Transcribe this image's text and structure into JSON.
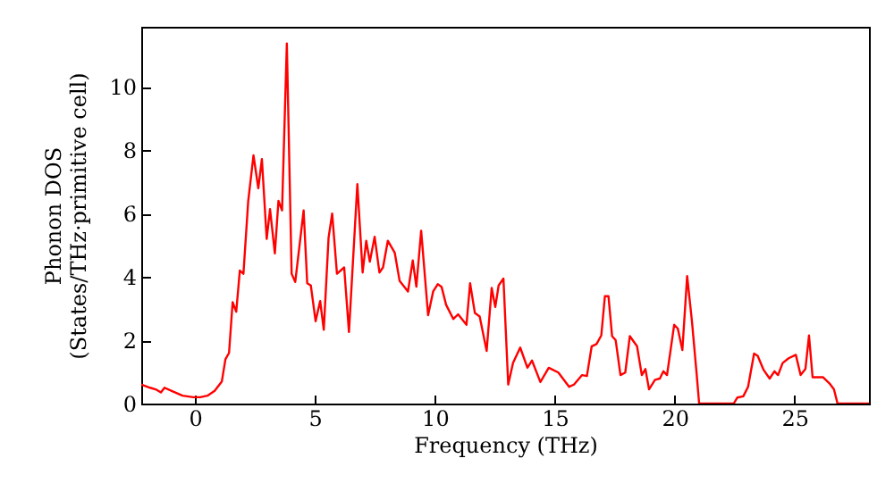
{
  "chart_data": {
    "type": "line",
    "xlabel": "Frequency (THz)",
    "ylabel": "Phonon DOS\n(States/THz·primitive cell)",
    "xlim": [
      -2.24,
      28.1
    ],
    "ylim": [
      0,
      11.9
    ],
    "xticks": [
      0,
      5,
      10,
      15,
      20,
      25
    ],
    "yticks": [
      0,
      2,
      4,
      6,
      8,
      10
    ],
    "grid": false,
    "series": [
      {
        "color": "#ff0000",
        "x": [
          -2.24,
          -1.87,
          -1.64,
          -1.42,
          -1.27,
          -0.97,
          -0.52,
          -0.07,
          0.22,
          0.52,
          0.82,
          1.12,
          1.27,
          1.42,
          1.57,
          1.72,
          1.87,
          2.02,
          2.22,
          2.44,
          2.64,
          2.79,
          2.99,
          3.13,
          3.33,
          3.48,
          3.63,
          3.83,
          4.03,
          4.18,
          4.53,
          4.68,
          4.83,
          5.03,
          5.22,
          5.37,
          5.57,
          5.72,
          5.92,
          6.22,
          6.42,
          6.77,
          6.99,
          7.14,
          7.29,
          7.49,
          7.69,
          7.84,
          8.04,
          8.33,
          8.53,
          8.88,
          9.08,
          9.23,
          9.43,
          9.72,
          9.93,
          10.12,
          10.28,
          10.47,
          10.77,
          10.97,
          11.32,
          11.47,
          11.67,
          11.87,
          12.16,
          12.37,
          12.52,
          12.66,
          12.86,
          13.06,
          13.26,
          13.56,
          13.86,
          14.05,
          14.4,
          14.75,
          15.15,
          15.6,
          15.8,
          16.14,
          16.34,
          16.54,
          16.74,
          16.94,
          17.09,
          17.24,
          17.39,
          17.54,
          17.74,
          17.94,
          18.13,
          18.43,
          18.63,
          18.78,
          18.93,
          19.18,
          19.38,
          19.53,
          19.68,
          19.98,
          20.13,
          20.32,
          20.52,
          20.72,
          20.92,
          21.02,
          22.46,
          22.61,
          22.86,
          23.06,
          23.31,
          23.46,
          23.71,
          23.96,
          24.16,
          24.31,
          24.5,
          24.75,
          25.05,
          25.25,
          25.45,
          25.6,
          25.75,
          26.19,
          26.45,
          26.64,
          26.79,
          28.1
        ],
        "values": [
          0.6,
          0.5,
          0.45,
          0.35,
          0.5,
          0.4,
          0.25,
          0.2,
          0.2,
          0.25,
          0.4,
          0.7,
          1.4,
          1.6,
          3.2,
          2.9,
          4.2,
          4.1,
          6.4,
          7.84,
          6.8,
          7.72,
          5.2,
          6.14,
          4.74,
          6.4,
          6.1,
          11.37,
          4.1,
          3.84,
          6.1,
          3.8,
          3.73,
          2.6,
          3.24,
          2.33,
          5.24,
          6.0,
          4.1,
          4.3,
          2.26,
          6.93,
          4.14,
          5.14,
          4.48,
          5.27,
          4.14,
          4.3,
          5.14,
          4.76,
          3.88,
          3.54,
          4.52,
          3.69,
          5.46,
          2.79,
          3.54,
          3.77,
          3.69,
          3.12,
          2.67,
          2.82,
          2.49,
          3.8,
          2.86,
          2.75,
          1.66,
          3.65,
          3.05,
          3.73,
          3.95,
          0.6,
          1.28,
          1.77,
          1.13,
          1.36,
          0.68,
          1.13,
          0.98,
          0.53,
          0.6,
          0.9,
          0.87,
          1.81,
          1.88,
          2.15,
          3.39,
          3.39,
          2.13,
          2.0,
          0.9,
          0.98,
          2.13,
          1.81,
          0.9,
          1.09,
          0.45,
          0.75,
          0.79,
          1.02,
          0.9,
          2.49,
          2.37,
          1.69,
          4.03,
          2.6,
          0.9,
          0,
          0,
          0.19,
          0.23,
          0.53,
          1.58,
          1.51,
          1.06,
          0.79,
          1.02,
          0.9,
          1.28,
          1.43,
          1.54,
          0.9,
          1.09,
          2.15,
          0.83,
          0.83,
          0.64,
          0.45,
          0,
          0
        ]
      }
    ]
  }
}
